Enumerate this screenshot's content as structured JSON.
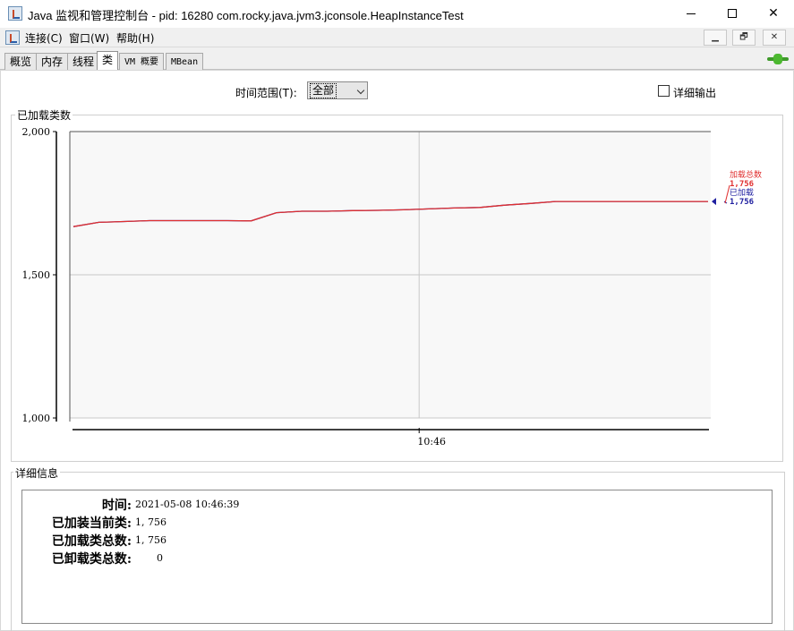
{
  "window": {
    "title": "Java 监视和管理控制台 - pid: 16280 com.rocky.java.jvm3.jconsole.HeapInstanceTest",
    "minimize_icon": "minimize-icon",
    "maximize_icon": "maximize-icon",
    "close_label": "✕"
  },
  "menu": {
    "items": [
      "连接(C)",
      "窗口(W)",
      "帮助(H)"
    ],
    "mdi_buttons": [
      "▁",
      "🗗",
      "✕"
    ]
  },
  "tabs": {
    "items": [
      "概览",
      "内存",
      "线程",
      "类",
      "VM 概要",
      "MBean"
    ],
    "active": "类"
  },
  "controls": {
    "range_label": "时间范围(T):",
    "range_value": "全部",
    "detail_output_label": "详细输出",
    "detail_output_checked": false
  },
  "chart_panel": {
    "group_title": "已加载类数"
  },
  "chart_data": {
    "type": "line",
    "y_ticks": [
      "2,000",
      "1,500",
      "1,000"
    ],
    "ylim": [
      1000,
      2000
    ],
    "x_ticks": [
      "10:46"
    ],
    "grid": true,
    "series": [
      {
        "name": "加载总数",
        "color": "#e03030",
        "current": "1,756",
        "values": [
          1668,
          1683,
          1686,
          1689,
          1689,
          1689,
          1689,
          1688,
          1717,
          1722,
          1722,
          1724,
          1725,
          1727,
          1730,
          1733,
          1735,
          1743,
          1749,
          1756,
          1756,
          1756,
          1756,
          1756,
          1756,
          1756
        ]
      },
      {
        "name": "已加载",
        "color": "#2020a0",
        "current": "1,756",
        "values": [
          1668,
          1683,
          1686,
          1689,
          1689,
          1689,
          1689,
          1688,
          1717,
          1722,
          1722,
          1724,
          1725,
          1727,
          1730,
          1733,
          1735,
          1743,
          1749,
          1756,
          1756,
          1756,
          1756,
          1756,
          1756,
          1756
        ]
      }
    ],
    "legend_placement": "right"
  },
  "details": {
    "group_title": "详细信息",
    "rows": [
      {
        "label": "时间:",
        "value": "2021-05-08 10:46:39"
      },
      {
        "label": "已加装当前类:",
        "value": "1, 756"
      },
      {
        "label": "已加载类总数:",
        "value": "1, 756"
      },
      {
        "label": "已卸载类总数:",
        "value": "0"
      }
    ]
  }
}
